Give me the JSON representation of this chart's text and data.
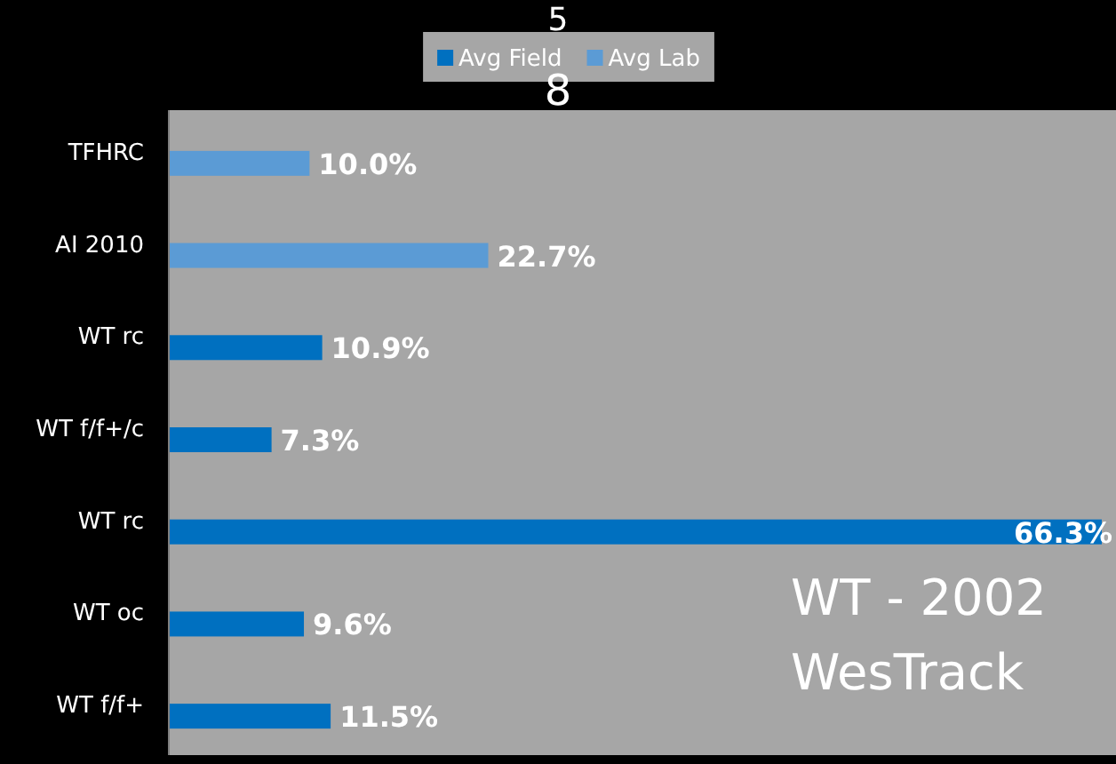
{
  "chart_data": {
    "type": "bar",
    "orientation": "horizontal",
    "categories": [
      "TFHRC",
      "AI 2010",
      "WT rc",
      "WT f/f+/c",
      "WT rc",
      "WT oc",
      "WT f/f+"
    ],
    "series": [
      {
        "name": "Avg Field",
        "color": "#0070c0",
        "values": [
          null,
          null,
          10.9,
          7.3,
          66.3,
          9.6,
          11.5
        ],
        "value_labels": [
          null,
          null,
          "10.9%",
          "7.3%",
          "66.3%",
          "9.6%",
          "11.5%"
        ]
      },
      {
        "name": "Avg Lab",
        "color": "#5b9bd5",
        "values": [
          10.0,
          22.7,
          null,
          null,
          null,
          null,
          null
        ],
        "value_labels": [
          "10.0%",
          "22.7%",
          null,
          null,
          null,
          null,
          null
        ]
      }
    ],
    "legend": "top",
    "annotations": [
      "5",
      "8",
      "WT - 2002\nWesTrack"
    ]
  }
}
